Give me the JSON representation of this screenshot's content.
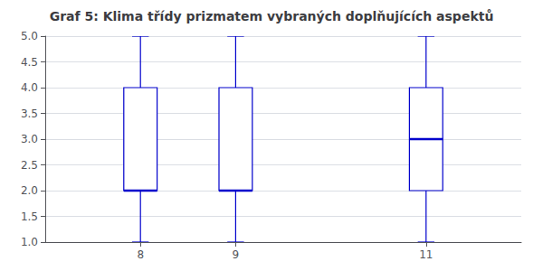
{
  "chart_data": {
    "type": "box",
    "title": "Graf 5: Klima třídy prizmatem vybraných doplňujících aspektů",
    "x": [
      8,
      9,
      11
    ],
    "values": [
      {
        "min": 1.0,
        "q1": 2.0,
        "median": 2.0,
        "q3": 4.0,
        "max": 5.0
      },
      {
        "min": 1.0,
        "q1": 2.0,
        "median": 2.0,
        "q3": 4.0,
        "max": 5.0
      },
      {
        "min": 1.0,
        "q1": 2.0,
        "median": 3.0,
        "q3": 4.0,
        "max": 5.0
      }
    ],
    "color": "#0000cc",
    "xlim": [
      7,
      12
    ],
    "xticks": [
      8,
      9,
      11
    ],
    "ylim": [
      1,
      5
    ],
    "yticks": [
      {
        "value": 1,
        "label": "1.0"
      },
      1.5,
      {
        "value": 2,
        "label": "2.0"
      },
      2.5,
      {
        "value": 3,
        "label": "3.0"
      },
      3.5,
      {
        "value": 4,
        "label": "4.0"
      },
      4.5,
      {
        "value": 5,
        "label": "5.0"
      }
    ],
    "grid": true
  }
}
